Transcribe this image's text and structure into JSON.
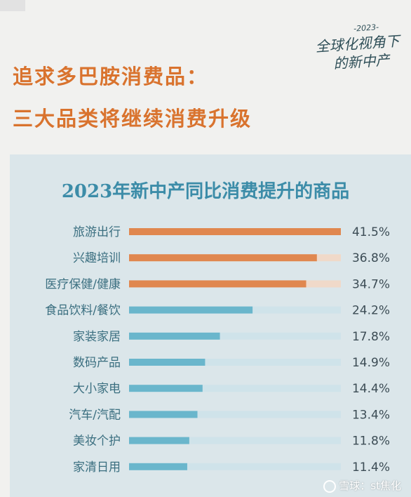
{
  "logo": {
    "year": "-2023-",
    "line1": "全球化视角下",
    "line2": "的新中产"
  },
  "headline": {
    "line1": "追求多巴胺消费品：",
    "line2": "三大品类将继续消费升级"
  },
  "watermark": {
    "text": "雪球：st焦化"
  },
  "colors": {
    "highlight": "#e0874f",
    "normal": "#6ab6cc",
    "track_highlight": "#f0d9c9",
    "track_normal": "#cfe3ea",
    "label": "#3b6f80",
    "value": "#3c4c55"
  },
  "chart_data": {
    "type": "bar",
    "orientation": "horizontal",
    "title": "2023年新中产同比消费提升的商品",
    "categories": [
      "旅游出行",
      "兴趣培训",
      "医疗保健/健康",
      "食品饮料/餐饮",
      "家装家居",
      "数码产品",
      "大小家电",
      "汽车/汽配",
      "美妆个护",
      "家清日用"
    ],
    "values": [
      41.5,
      36.8,
      34.7,
      24.2,
      17.8,
      14.9,
      14.4,
      13.4,
      11.8,
      11.4
    ],
    "value_labels": [
      "41.5%",
      "36.8%",
      "34.7%",
      "24.2%",
      "17.8%",
      "14.9%",
      "14.4%",
      "13.4%",
      "11.8%",
      "11.4%"
    ],
    "highlighted": [
      true,
      true,
      true,
      false,
      false,
      false,
      false,
      false,
      false,
      false
    ],
    "xlim": [
      0,
      41.5
    ],
    "grid": false,
    "legend": "none"
  }
}
